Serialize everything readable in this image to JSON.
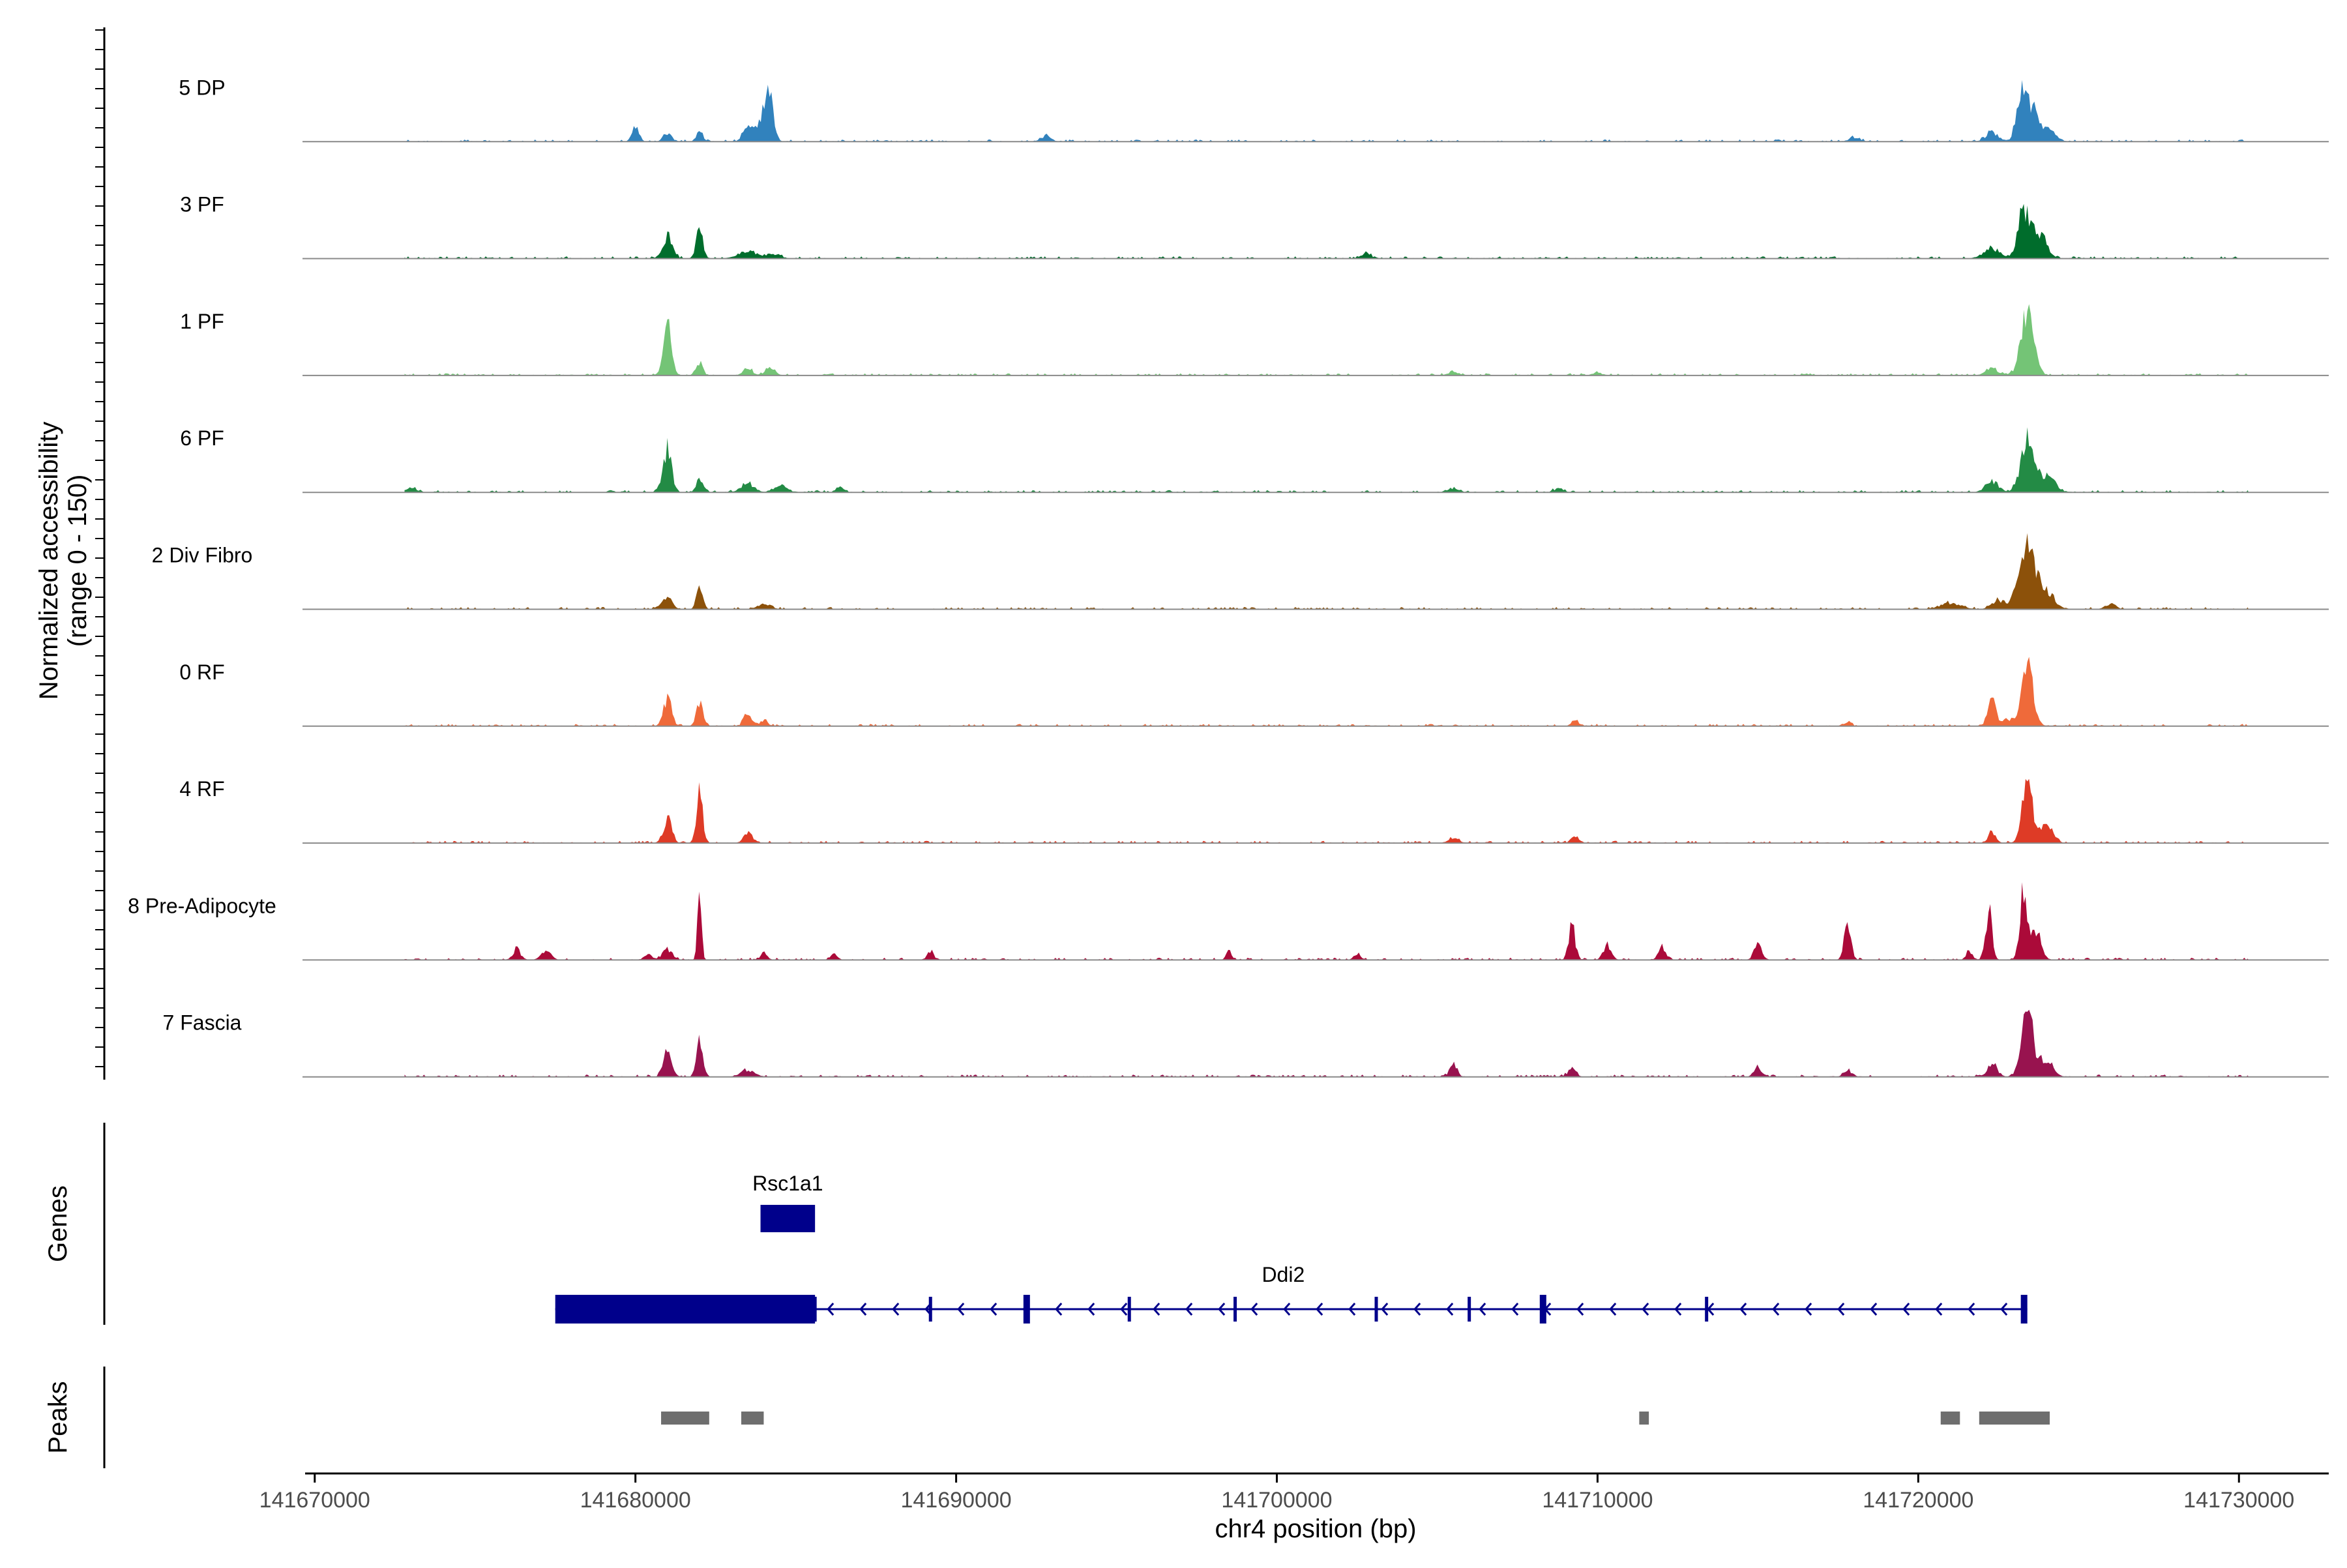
{
  "chart_data": {
    "type": "area",
    "title": "",
    "ylabel_line1": "Normalized accessibility",
    "ylabel_line2": "(range 0 - 150)",
    "ylim": [
      0,
      150
    ],
    "genes_label": "Genes",
    "peaks_label": "Peaks",
    "xlabel": "chr4 position (bp)",
    "xlim": [
      141669700,
      141732800
    ],
    "x_ticks": [
      141670000,
      141680000,
      141690000,
      141700000,
      141710000,
      141720000,
      141730000
    ],
    "x_tick_labels": [
      "141670000",
      "141680000",
      "141690000",
      "141700000",
      "141710000",
      "141720000",
      "141730000"
    ],
    "track_range": [
      141672800,
      141730300
    ],
    "series": [
      {
        "name": "5 DP",
        "color": "#3182bd",
        "peaks": [
          [
            141680000,
            40,
            100
          ],
          [
            141681000,
            20,
            120
          ],
          [
            141682000,
            25,
            100
          ],
          [
            141683500,
            30,
            150
          ],
          [
            141684000,
            55,
            180
          ],
          [
            141684200,
            70,
            120
          ],
          [
            141692800,
            12,
            150
          ],
          [
            141718000,
            10,
            150
          ],
          [
            141722300,
            20,
            200
          ],
          [
            141723200,
            100,
            150
          ],
          [
            141723500,
            70,
            180
          ],
          [
            141724000,
            30,
            250
          ]
        ]
      },
      {
        "name": "3 PF",
        "color": "#006d2c",
        "peaks": [
          [
            141681000,
            50,
            150
          ],
          [
            141682000,
            75,
            100
          ],
          [
            141683500,
            15,
            300
          ],
          [
            141684300,
            10,
            200
          ],
          [
            141702800,
            10,
            150
          ],
          [
            141723300,
            110,
            180
          ],
          [
            141723800,
            60,
            200
          ],
          [
            141722300,
            20,
            250
          ]
        ]
      },
      {
        "name": "1 PF",
        "color": "#74c476",
        "peaks": [
          [
            141681000,
            110,
            120
          ],
          [
            141682000,
            30,
            100
          ],
          [
            141683500,
            15,
            150
          ],
          [
            141684200,
            18,
            150
          ],
          [
            141705500,
            8,
            150
          ],
          [
            141710000,
            6,
            150
          ],
          [
            141722300,
            15,
            200
          ],
          [
            141723400,
            140,
            200
          ]
        ]
      },
      {
        "name": "6 PF",
        "color": "#238b45",
        "peaks": [
          [
            141673000,
            10,
            150
          ],
          [
            141681000,
            100,
            130
          ],
          [
            141682000,
            30,
            100
          ],
          [
            141683500,
            20,
            200
          ],
          [
            141684500,
            15,
            200
          ],
          [
            141686400,
            12,
            100
          ],
          [
            141705500,
            10,
            150
          ],
          [
            141708800,
            8,
            150
          ],
          [
            141722300,
            25,
            200
          ],
          [
            141723400,
            120,
            200
          ],
          [
            141724000,
            40,
            250
          ]
        ]
      },
      {
        "name": "2 Div Fibro",
        "color": "#8c510a",
        "peaks": [
          [
            141681000,
            25,
            150
          ],
          [
            141682000,
            45,
            100
          ],
          [
            141684000,
            10,
            200
          ],
          [
            141721000,
            15,
            300
          ],
          [
            141722500,
            20,
            200
          ],
          [
            141723400,
            150,
            250
          ],
          [
            141724000,
            35,
            250
          ],
          [
            141726000,
            12,
            150
          ]
        ]
      },
      {
        "name": "0 RF",
        "color": "#ef6a3a",
        "peaks": [
          [
            141681000,
            60,
            130
          ],
          [
            141682000,
            55,
            100
          ],
          [
            141683500,
            30,
            120
          ],
          [
            141684000,
            12,
            120
          ],
          [
            141709300,
            15,
            100
          ],
          [
            141717800,
            10,
            100
          ],
          [
            141722300,
            60,
            120
          ],
          [
            141723400,
            135,
            180
          ],
          [
            141722800,
            15,
            150
          ]
        ]
      },
      {
        "name": "4 RF",
        "color": "#de3b26",
        "peaks": [
          [
            141681000,
            55,
            130
          ],
          [
            141682000,
            135,
            90
          ],
          [
            141683500,
            25,
            120
          ],
          [
            141705500,
            12,
            150
          ],
          [
            141709300,
            15,
            120
          ],
          [
            141722300,
            25,
            120
          ],
          [
            141723400,
            160,
            150
          ],
          [
            141724000,
            40,
            200
          ]
        ]
      },
      {
        "name": "8 Pre-Adipocyte",
        "color": "#ab0a39",
        "peaks": [
          [
            141676300,
            25,
            120
          ],
          [
            141677200,
            20,
            150
          ],
          [
            141680400,
            12,
            120
          ],
          [
            141681000,
            25,
            150
          ],
          [
            141682000,
            150,
            60
          ],
          [
            141684000,
            15,
            100
          ],
          [
            141686200,
            12,
            100
          ],
          [
            141689200,
            20,
            100
          ],
          [
            141698500,
            20,
            80
          ],
          [
            141702500,
            15,
            100
          ],
          [
            141709200,
            80,
            100
          ],
          [
            141710300,
            30,
            120
          ],
          [
            141712000,
            35,
            100
          ],
          [
            141715000,
            35,
            120
          ],
          [
            141717800,
            95,
            100
          ],
          [
            141721600,
            20,
            100
          ],
          [
            141722200,
            110,
            100
          ],
          [
            141723300,
            160,
            120
          ],
          [
            141723700,
            60,
            150
          ]
        ]
      },
      {
        "name": "7 Fascia",
        "color": "#98134f",
        "peaks": [
          [
            141681000,
            55,
            130
          ],
          [
            141682000,
            85,
            100
          ],
          [
            141683500,
            15,
            200
          ],
          [
            141705500,
            25,
            120
          ],
          [
            141709200,
            18,
            120
          ],
          [
            141715000,
            20,
            120
          ],
          [
            141717800,
            15,
            120
          ],
          [
            141722300,
            30,
            150
          ],
          [
            141723400,
            145,
            180
          ],
          [
            141724000,
            40,
            200
          ]
        ]
      }
    ],
    "genes": [
      {
        "name": "Rsc1a1",
        "strand": "+",
        "start": 141683900,
        "end": 141685600
      },
      {
        "name": "Ddi2",
        "strand": "-",
        "start": 141677500,
        "end": 141723400,
        "utr": [
          141677500,
          141685600
        ],
        "exons": [
          141685600,
          141689200,
          141692200,
          141695400,
          141698700,
          141703100,
          141706000,
          141708300,
          141713400,
          141723300
        ]
      }
    ],
    "peak_regions": [
      [
        141680800,
        141682300
      ],
      [
        141683300,
        141684000
      ],
      [
        141711300,
        141711600
      ],
      [
        141720700,
        141721300
      ],
      [
        141721900,
        141724100
      ]
    ]
  }
}
